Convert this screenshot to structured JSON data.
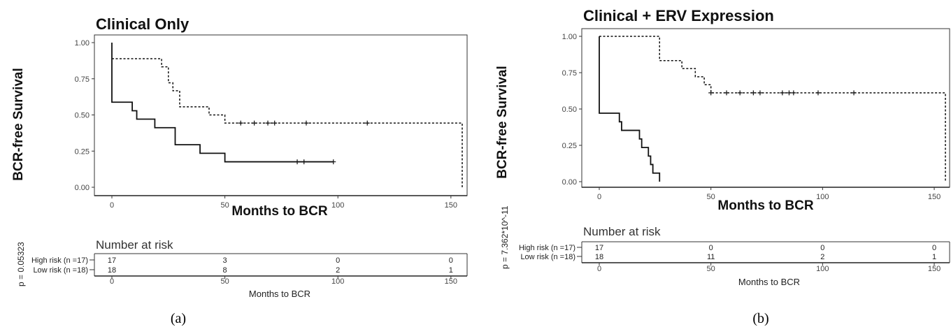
{
  "chart_data": [
    {
      "type": "line",
      "subtype": "kaplan-meier step",
      "title": "Clinical Only",
      "xlabel": "Months to BCR",
      "ylabel": "BCR-free Survival",
      "xlim": [
        0,
        155
      ],
      "ylim": [
        0,
        1.0
      ],
      "x_ticks": [
        "0",
        "50",
        "100",
        "150"
      ],
      "y_ticks": [
        "0.00",
        "0.25",
        "0.50",
        "0.75",
        "1.00"
      ],
      "grid": false,
      "series": [
        {
          "line_style": "solid",
          "steps": [
            [
              0,
              1.0
            ],
            [
              0,
              0.588
            ],
            [
              9,
              0.529
            ],
            [
              11,
              0.471
            ],
            [
              19,
              0.412
            ],
            [
              28,
              0.294
            ],
            [
              39,
              0.235
            ],
            [
              50,
              0.176
            ],
            [
              98,
              0.176
            ]
          ],
          "censored": [
            [
              82,
              0.176
            ],
            [
              85,
              0.176
            ],
            [
              98,
              0.176
            ]
          ]
        },
        {
          "line_style": "dashed",
          "steps": [
            [
              0,
              0.889
            ],
            [
              22,
              0.833
            ],
            [
              25,
              0.722
            ],
            [
              27,
              0.667
            ],
            [
              30,
              0.556
            ],
            [
              43,
              0.5
            ],
            [
              50,
              0.444
            ],
            [
              155,
              0.444
            ],
            [
              155,
              0.0
            ]
          ],
          "censored": [
            [
              57,
              0.444
            ],
            [
              63,
              0.444
            ],
            [
              69,
              0.444
            ],
            [
              72,
              0.444
            ],
            [
              86,
              0.444
            ],
            [
              113,
              0.444
            ]
          ]
        }
      ],
      "risk_table": {
        "title": "Number at risk",
        "xlabel": "Months to BCR",
        "x_ticks": [
          "0",
          "50",
          "100",
          "150"
        ],
        "rows": [
          {
            "label": "High risk (n =17)",
            "values": [
              "17",
              "3",
              "0",
              "0"
            ]
          },
          {
            "label": "Low risk (n =18)",
            "values": [
              "18",
              "8",
              "2",
              "1"
            ]
          }
        ]
      },
      "p_value": "p = 0.05323",
      "caption": "(a)"
    },
    {
      "type": "line",
      "subtype": "kaplan-meier step",
      "title": "Clinical + ERV Expression",
      "xlabel": "Months to BCR",
      "ylabel": "BCR-free Survival",
      "xlim": [
        0,
        155
      ],
      "ylim": [
        0,
        1.0
      ],
      "x_ticks": [
        "0",
        "50",
        "100",
        "150"
      ],
      "y_ticks": [
        "0.00",
        "0.25",
        "0.50",
        "0.75",
        "1.00"
      ],
      "grid": false,
      "series": [
        {
          "line_style": "solid",
          "steps": [
            [
              0,
              1.0
            ],
            [
              0,
              0.471
            ],
            [
              9,
              0.412
            ],
            [
              10,
              0.353
            ],
            [
              18,
              0.294
            ],
            [
              19,
              0.235
            ],
            [
              22,
              0.176
            ],
            [
              23,
              0.118
            ],
            [
              24,
              0.059
            ],
            [
              27,
              0.059
            ],
            [
              27,
              0.0
            ]
          ],
          "censored": []
        },
        {
          "line_style": "dashed",
          "steps": [
            [
              0,
              1.0
            ],
            [
              27,
              1.0
            ],
            [
              27,
              0.833
            ],
            [
              37,
              0.778
            ],
            [
              43,
              0.722
            ],
            [
              47,
              0.667
            ],
            [
              50,
              0.611
            ],
            [
              155,
              0.611
            ],
            [
              155,
              0.0
            ]
          ],
          "censored": [
            [
              50,
              0.611
            ],
            [
              57,
              0.611
            ],
            [
              63,
              0.611
            ],
            [
              69,
              0.611
            ],
            [
              72,
              0.611
            ],
            [
              82,
              0.611
            ],
            [
              85,
              0.611
            ],
            [
              87,
              0.611
            ],
            [
              98,
              0.611
            ],
            [
              114,
              0.611
            ]
          ]
        }
      ],
      "risk_table": {
        "title": "Number at risk",
        "xlabel": "Months to BCR",
        "x_ticks": [
          "0",
          "50",
          "100",
          "150"
        ],
        "rows": [
          {
            "label": "High risk (n =17)",
            "values": [
              "17",
              "0",
              "0",
              "0"
            ]
          },
          {
            "label": "Low risk (n =18)",
            "values": [
              "18",
              "11",
              "2",
              "1"
            ]
          }
        ]
      },
      "p_value": "p = 7.362*10^-11",
      "caption": "(b)"
    }
  ]
}
